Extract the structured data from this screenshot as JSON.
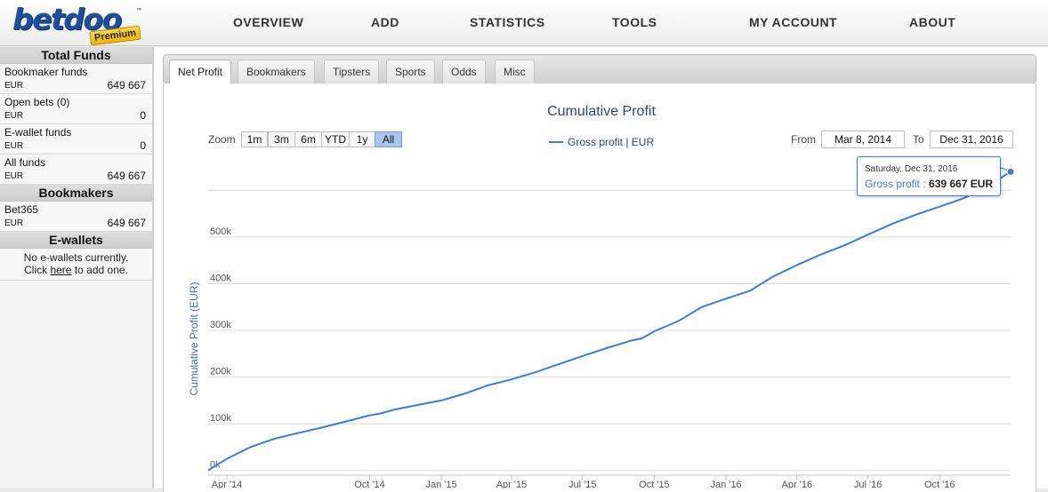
{
  "header": {
    "logo_text": "betdoo",
    "logo_badge": "Premium",
    "logo_tm": "™",
    "nav": [
      "OVERVIEW",
      "ADD",
      "STATISTICS",
      "TOOLS",
      "MY ACCOUNT",
      "ABOUT"
    ]
  },
  "sidebar": {
    "total_funds_title": "Total Funds",
    "funds": [
      {
        "label": "Bookmaker funds",
        "currency": "EUR",
        "value": "649 667"
      },
      {
        "label": "Open bets (0)",
        "currency": "EUR",
        "value": "0"
      },
      {
        "label": "E-wallet funds",
        "currency": "EUR",
        "value": "0"
      },
      {
        "label": "All funds",
        "currency": "EUR",
        "value": "649 667"
      }
    ],
    "bookmakers_title": "Bookmakers",
    "bookmakers": [
      {
        "label": "Bet365",
        "currency": "EUR",
        "value": "649 667"
      }
    ],
    "ewallets_title": "E-wallets",
    "ewallets_empty": "No e-wallets currently.",
    "ewallets_click": "Click ",
    "ewallets_link": "here",
    "ewallets_suffix": " to add one."
  },
  "tabs": [
    "Net Profit",
    "Bookmakers",
    "Tipsters",
    "Sports",
    "Odds",
    "Misc"
  ],
  "active_tab": "Net Profit",
  "zoom": {
    "label": "Zoom",
    "buttons": [
      "1m",
      "3m",
      "6m",
      "YTD",
      "1y",
      "All"
    ],
    "selected": "All"
  },
  "range": {
    "from_label": "From",
    "from_value": "Mar 8, 2014",
    "to_label": "To",
    "to_value": "Dec 31, 2016"
  },
  "tooltip": {
    "date": "Saturday, Dec 31, 2016",
    "series": "Gross profit",
    "value": "639 667 EUR"
  },
  "colors": {
    "series": "#3a7fd5",
    "title": "#274b6d",
    "zoom_selected": "#a9c4ee"
  },
  "chart_data": {
    "type": "line",
    "title": "Cumulative Profit",
    "ylabel": "Cumulative Profit (EUR)",
    "xlabel": "",
    "legend": "Gross profit | EUR",
    "legend_position": "top-center",
    "grid": true,
    "ylim": [
      -10000,
      650000
    ],
    "yticks": [
      0,
      100000,
      200000,
      300000,
      400000,
      500000
    ],
    "ytick_labels": [
      "0k",
      "100k",
      "200k",
      "300k",
      "400k",
      "500k"
    ],
    "xlim": [
      "2014-03-08",
      "2016-12-31"
    ],
    "xticks": [
      "2014-04-01",
      "2014-10-01",
      "2015-01-01",
      "2015-04-01",
      "2015-07-01",
      "2015-10-01",
      "2016-01-01",
      "2016-04-01",
      "2016-07-01",
      "2016-10-01"
    ],
    "xtick_labels": [
      "Apr '14",
      "Oct '14",
      "Jan '15",
      "Apr '15",
      "Jul '15",
      "Oct '15",
      "Jan '16",
      "Apr '16",
      "Jul '16",
      "Oct '16"
    ],
    "series": [
      {
        "name": "Gross profit | EUR",
        "x": [
          "2014-03-08",
          "2014-04-01",
          "2014-05-01",
          "2014-06-01",
          "2014-07-01",
          "2014-08-01",
          "2014-09-01",
          "2014-10-01",
          "2014-10-15",
          "2014-11-01",
          "2014-12-01",
          "2015-01-01",
          "2015-02-01",
          "2015-03-01",
          "2015-04-01",
          "2015-05-01",
          "2015-06-01",
          "2015-07-01",
          "2015-08-01",
          "2015-09-01",
          "2015-09-15",
          "2015-10-01",
          "2015-11-01",
          "2015-12-01",
          "2016-01-01",
          "2016-02-01",
          "2016-03-01",
          "2016-04-01",
          "2016-05-01",
          "2016-06-01",
          "2016-07-01",
          "2016-08-01",
          "2016-09-01",
          "2016-10-01",
          "2016-11-01",
          "2016-12-01",
          "2016-12-31"
        ],
        "values": [
          0,
          25000,
          50000,
          68000,
          80000,
          92000,
          105000,
          118000,
          122000,
          130000,
          140000,
          150000,
          165000,
          182000,
          195000,
          210000,
          228000,
          245000,
          262000,
          278000,
          283000,
          298000,
          320000,
          350000,
          368000,
          385000,
          415000,
          440000,
          462000,
          482000,
          505000,
          528000,
          548000,
          565000,
          583000,
          608000,
          639667
        ]
      }
    ]
  }
}
